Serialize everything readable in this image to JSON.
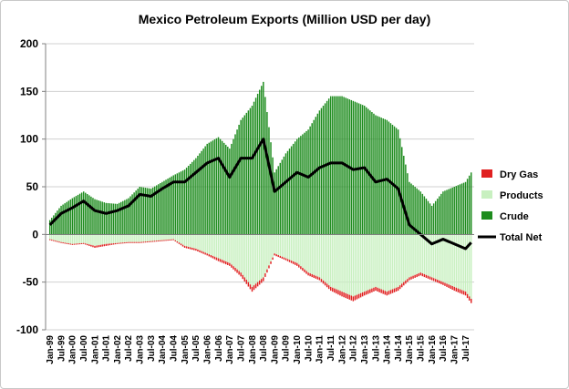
{
  "chart_data": {
    "type": "bar",
    "title": "Mexico Petroleum Exports (Million USD per day)",
    "ylim": [
      -100,
      200
    ],
    "y_ticks": [
      200,
      150,
      100,
      50,
      0,
      -50,
      -100
    ],
    "x_tick_labels": [
      "Jan-99",
      "Jul-99",
      "Jan-00",
      "Jul-00",
      "Jan-01",
      "Jul-01",
      "Jan-02",
      "Jul-02",
      "Jan-03",
      "Jul-03",
      "Jan-04",
      "Jul-04",
      "Jan-05",
      "Jul-05",
      "Jan-06",
      "Jul-06",
      "Jan-07",
      "Jul-07",
      "Jan-08",
      "Jul-08",
      "Jan-09",
      "Jul-09",
      "Jan-10",
      "Jul-10",
      "Jan-11",
      "Jul-11",
      "Jan-12",
      "Jul-12",
      "Jan-13",
      "Jul-13",
      "Jan-14",
      "Jul-14",
      "Jan-15",
      "Jul-15",
      "Jan-16",
      "Jul-16",
      "Jan-17",
      "Jul-17"
    ],
    "grid": true,
    "legend_position": "right",
    "colors": {
      "dry_gas": "#e02020",
      "products": "#c8f0c0",
      "crude": "#1e8c1e",
      "total_net": "#000000"
    },
    "series": [
      {
        "name": "Crude",
        "type": "bar",
        "x": [
          "Jan-99",
          "Jul-99",
          "Jan-00",
          "Jul-00",
          "Jan-01",
          "Jul-01",
          "Jan-02",
          "Jul-02",
          "Jan-03",
          "Jul-03",
          "Jan-04",
          "Jul-04",
          "Jan-05",
          "Jul-05",
          "Jan-06",
          "Jul-06",
          "Jan-07",
          "Jul-07",
          "Jan-08",
          "Jul-08",
          "Jan-09",
          "Jul-09",
          "Jan-10",
          "Jul-10",
          "Jan-11",
          "Jul-11",
          "Jan-12",
          "Jul-12",
          "Jan-13",
          "Jul-13",
          "Jan-14",
          "Jul-14",
          "Jan-15",
          "Jul-15",
          "Jan-16",
          "Jul-16",
          "Jan-17",
          "Jul-17",
          "Dec-17"
        ],
        "values": [
          15,
          30,
          38,
          45,
          37,
          33,
          32,
          38,
          50,
          48,
          55,
          62,
          68,
          80,
          95,
          102,
          90,
          120,
          135,
          160,
          65,
          85,
          100,
          110,
          130,
          145,
          145,
          140,
          135,
          125,
          120,
          110,
          55,
          45,
          30,
          45,
          50,
          55,
          75
        ]
      },
      {
        "name": "Products",
        "type": "bar",
        "x": [
          "Jan-99",
          "Jul-99",
          "Jan-00",
          "Jul-00",
          "Jan-01",
          "Jul-01",
          "Jan-02",
          "Jul-02",
          "Jan-03",
          "Jul-03",
          "Jan-04",
          "Jul-04",
          "Jan-05",
          "Jul-05",
          "Jan-06",
          "Jul-06",
          "Jan-07",
          "Jul-07",
          "Jan-08",
          "Jul-08",
          "Jan-09",
          "Jul-09",
          "Jan-10",
          "Jul-10",
          "Jan-11",
          "Jul-11",
          "Jan-12",
          "Jul-12",
          "Jan-13",
          "Jul-13",
          "Jan-14",
          "Jul-14",
          "Jan-15",
          "Jul-15",
          "Jan-16",
          "Jul-16",
          "Jan-17",
          "Jul-17",
          "Dec-17"
        ],
        "values": [
          -5,
          -8,
          -10,
          -9,
          -12,
          -10,
          -9,
          -8,
          -8,
          -7,
          -6,
          -5,
          -12,
          -15,
          -20,
          -25,
          -30,
          -40,
          -55,
          -45,
          -20,
          -25,
          -30,
          -40,
          -45,
          -55,
          -60,
          -65,
          -60,
          -55,
          -60,
          -55,
          -45,
          -40,
          -45,
          -50,
          -55,
          -60,
          -75
        ]
      },
      {
        "name": "Dry Gas",
        "type": "bar",
        "x": [
          "Jan-99",
          "Jul-99",
          "Jan-00",
          "Jul-00",
          "Jan-01",
          "Jul-01",
          "Jan-02",
          "Jul-02",
          "Jan-03",
          "Jul-03",
          "Jan-04",
          "Jul-04",
          "Jan-05",
          "Jul-05",
          "Jan-06",
          "Jul-06",
          "Jan-07",
          "Jul-07",
          "Jan-08",
          "Jul-08",
          "Jan-09",
          "Jul-09",
          "Jan-10",
          "Jul-10",
          "Jan-11",
          "Jul-11",
          "Jan-12",
          "Jul-12",
          "Jan-13",
          "Jul-13",
          "Jan-14",
          "Jul-14",
          "Jan-15",
          "Jul-15",
          "Jan-16",
          "Jul-16",
          "Jan-17",
          "Jul-17",
          "Dec-17"
        ],
        "values": [
          -1,
          -1,
          -1,
          -1,
          -2,
          -2,
          -1,
          -1,
          -1,
          -1,
          -1,
          -1,
          -2,
          -2,
          -2,
          -3,
          -3,
          -4,
          -5,
          -4,
          -2,
          -2,
          -3,
          -3,
          -3,
          -4,
          -5,
          -5,
          -4,
          -4,
          -4,
          -4,
          -3,
          -3,
          -3,
          -3,
          -4,
          -4,
          -5
        ]
      },
      {
        "name": "Total Net",
        "type": "line",
        "x": [
          "Jan-99",
          "Jul-99",
          "Jan-00",
          "Jul-00",
          "Jan-01",
          "Jul-01",
          "Jan-02",
          "Jul-02",
          "Jan-03",
          "Jul-03",
          "Jan-04",
          "Jul-04",
          "Jan-05",
          "Jul-05",
          "Jan-06",
          "Jul-06",
          "Jan-07",
          "Jul-07",
          "Jan-08",
          "Jul-08",
          "Jan-09",
          "Jul-09",
          "Jan-10",
          "Jul-10",
          "Jan-11",
          "Jul-11",
          "Jan-12",
          "Jul-12",
          "Jan-13",
          "Jul-13",
          "Jan-14",
          "Jul-14",
          "Jan-15",
          "Jul-15",
          "Jan-16",
          "Jul-16",
          "Jan-17",
          "Jul-17",
          "Dec-17"
        ],
        "values": [
          10,
          22,
          28,
          35,
          25,
          22,
          25,
          30,
          42,
          40,
          48,
          55,
          55,
          65,
          75,
          80,
          60,
          80,
          80,
          100,
          45,
          55,
          65,
          60,
          70,
          75,
          75,
          68,
          70,
          55,
          58,
          48,
          10,
          0,
          -10,
          -5,
          -10,
          -15,
          -2
        ]
      }
    ],
    "legend": [
      "Dry Gas",
      "Products",
      "Crude",
      "Total Net"
    ]
  }
}
